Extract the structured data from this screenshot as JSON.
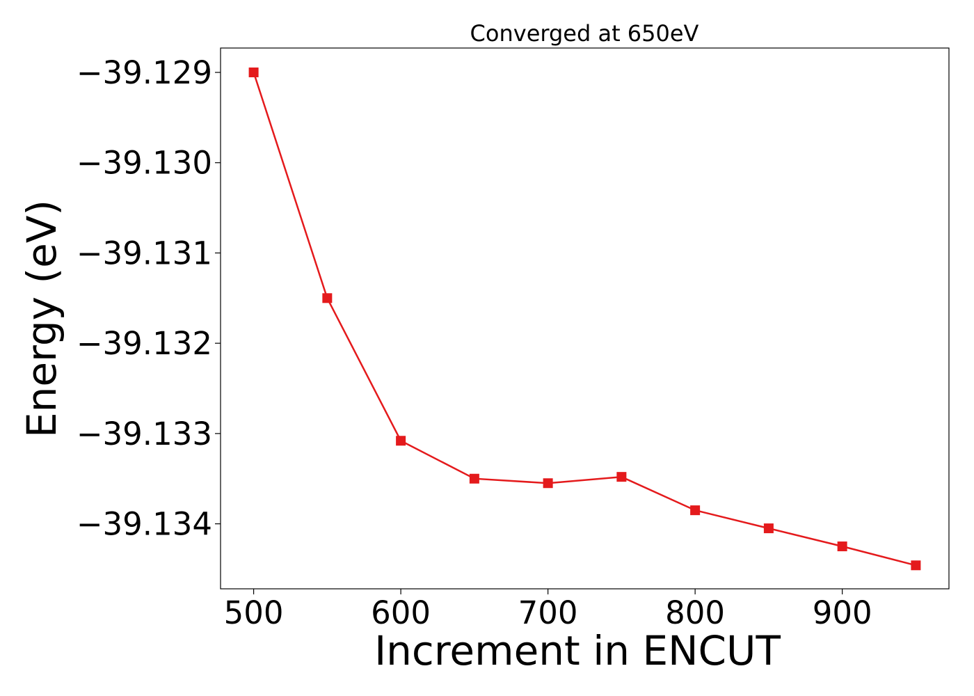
{
  "chart_data": {
    "type": "line",
    "title": "Converged at 650eV",
    "xlabel": "Increment in ENCUT",
    "ylabel": "Energy (eV)",
    "x": [
      500,
      550,
      600,
      650,
      700,
      750,
      800,
      850,
      900,
      950
    ],
    "series": [
      {
        "values": [
          -39.129,
          -39.1315,
          -39.13308,
          -39.1335,
          -39.13355,
          -39.13348,
          -39.13385,
          -39.13405,
          -39.13425,
          -39.13446
        ],
        "color": "#e41a1c",
        "marker": "square"
      }
    ],
    "xlim": [
      477.5,
      972.5
    ],
    "ylim": [
      -39.13472,
      -39.12873
    ],
    "xticks": [
      500,
      600,
      700,
      800,
      900
    ],
    "xtick_labels": [
      "500",
      "600",
      "700",
      "800",
      "900"
    ],
    "yticks": [
      -39.129,
      -39.13,
      -39.131,
      -39.132,
      -39.133,
      -39.134
    ],
    "ytick_labels": [
      "−39.129",
      "−39.130",
      "−39.131",
      "−39.132",
      "−39.133",
      "−39.134"
    ],
    "grid": false,
    "legend": "none"
  }
}
